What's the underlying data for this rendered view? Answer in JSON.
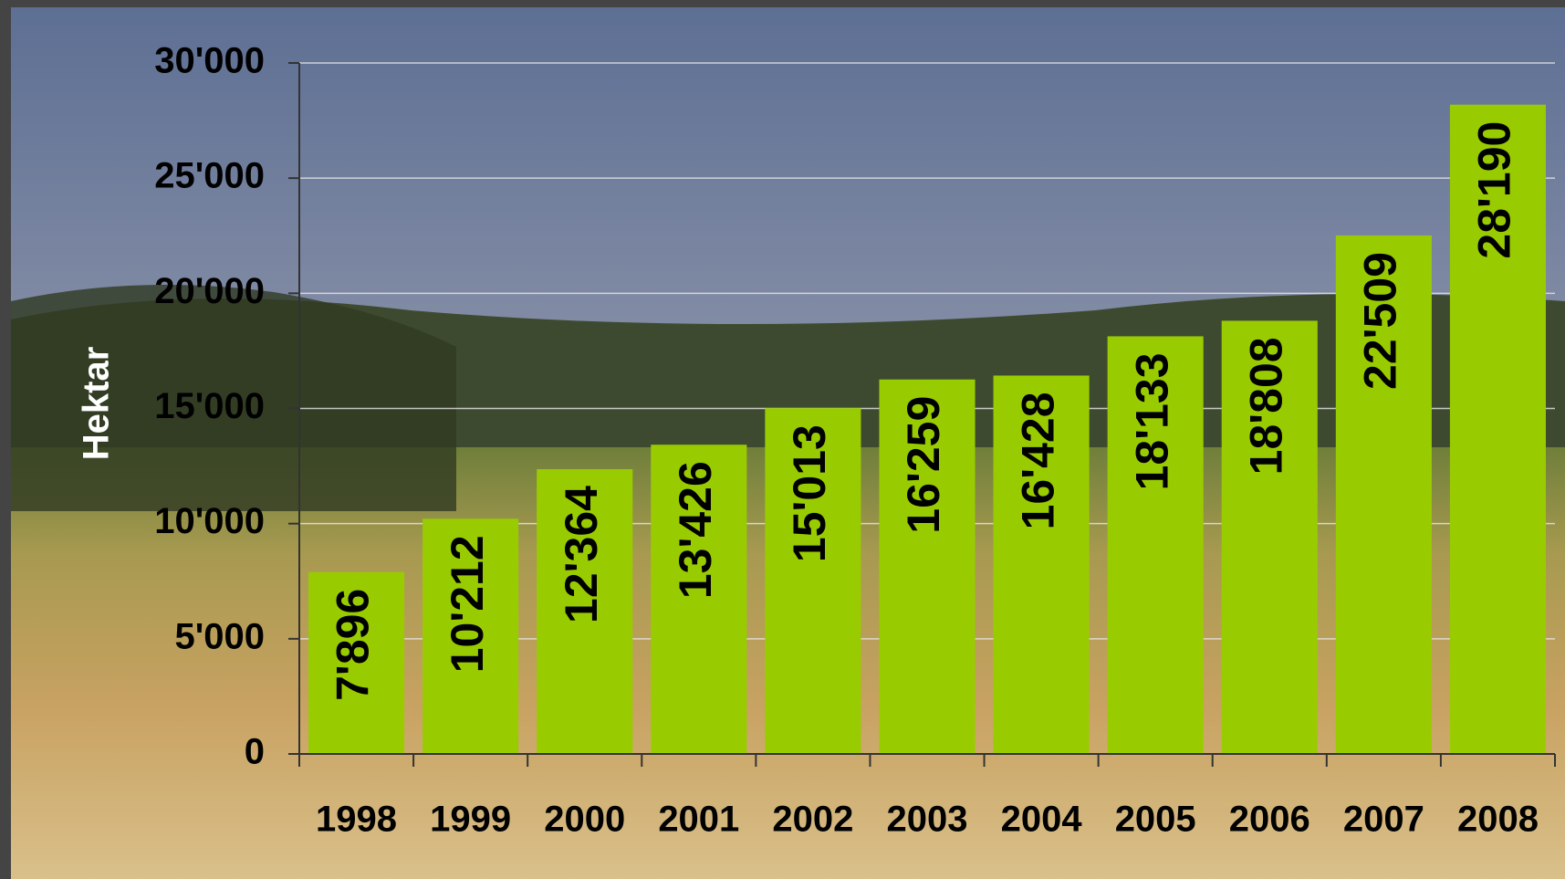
{
  "chart_data": {
    "type": "bar",
    "y_label": "Hektar",
    "categories": [
      "1998",
      "1999",
      "2000",
      "2001",
      "2002",
      "2003",
      "2004",
      "2005",
      "2006",
      "2007",
      "2008"
    ],
    "values": [
      7896,
      10212,
      12364,
      13426,
      15013,
      16259,
      16428,
      18133,
      18808,
      22509,
      28190
    ],
    "value_labels": [
      "7'896",
      "10'212",
      "12'364",
      "13'426",
      "15'013",
      "16'259",
      "16'428",
      "18'133",
      "18'808",
      "22'509",
      "28'190"
    ],
    "color": "#99cc00",
    "ylim": [
      0,
      30000
    ],
    "yticks": [
      0,
      {
        "value": 5000,
        "label": "5'000"
      },
      {
        "value": 10000,
        "label": "10'000"
      },
      {
        "value": 15000,
        "label": "15'000"
      },
      {
        "value": 20000,
        "label": "20'000"
      },
      {
        "value": 25000,
        "label": "25'000"
      },
      {
        "value": 30000,
        "label": "30'000"
      }
    ],
    "grid": true
  }
}
